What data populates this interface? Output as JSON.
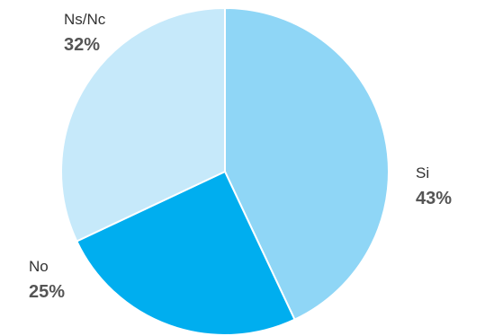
{
  "chart_data": {
    "type": "pie",
    "title": "",
    "start_angle_deg": 0,
    "direction": "clockwise",
    "slices": [
      {
        "label": "Si",
        "value": 43,
        "display": "43%",
        "color": "#8fd6f6"
      },
      {
        "label": "No",
        "value": 25,
        "display": "25%",
        "color": "#00aeef"
      },
      {
        "label": "Ns/Nc",
        "value": 32,
        "display": "32%",
        "color": "#c6e9fa"
      }
    ],
    "legend": "none",
    "separator_color": "#ffffff"
  }
}
